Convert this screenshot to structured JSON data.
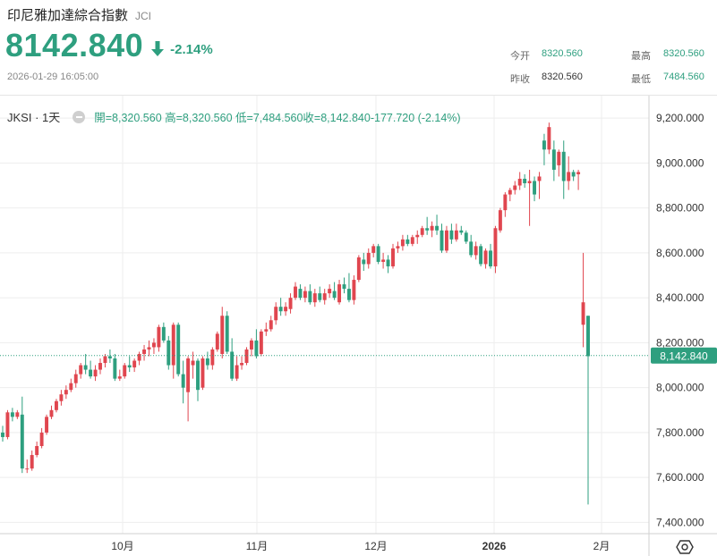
{
  "header": {
    "name": "印尼雅加達綜合指數",
    "code": "JCI",
    "price": "8142.840",
    "change_pct": "-2.14%",
    "timestamp": "2026-01-29 16:05:00"
  },
  "stats": {
    "open_label": "今开",
    "open_value": "8320.560",
    "high_label": "最高",
    "high_value": "8320.560",
    "prev_close_label": "昨收",
    "prev_close_value": "8320.560",
    "low_label": "最低",
    "low_value": "7484.560"
  },
  "legend": {
    "symbol": "JKSI · 1天",
    "ohlc_text": "開=8,320.560 高=8,320.560 低=7,484.560收=8,142.840-177.720 (-2.14%)"
  },
  "colors": {
    "up": "#e0464f",
    "down": "#2e9f7f",
    "grid": "#eeeeee",
    "price_tag_bg": "#2e9f7f"
  },
  "icons": {
    "change": "arrow-down-icon",
    "settings": "settings-icon",
    "legend_toggle": "minus-icon"
  },
  "chart_data": {
    "type": "candlestick",
    "y_axis_ticks": [
      "7,400.000",
      "7,600.000",
      "7,800.000",
      "8,000.000",
      "8,200.000",
      "8,400.000",
      "8,600.000",
      "8,800.000",
      "9,000.000",
      "9,200.000"
    ],
    "ylim": [
      7350,
      9300
    ],
    "x_axis_ticks": [
      "10月",
      "11月",
      "12月",
      "2026",
      "2月"
    ],
    "last_price_label": "8,142.840",
    "last_price": 8142.84,
    "candles": [
      [
        7800,
        7830,
        7760,
        7780
      ],
      [
        7780,
        7900,
        7770,
        7890
      ],
      [
        7890,
        7910,
        7850,
        7870
      ],
      [
        7870,
        7900,
        7860,
        7890
      ],
      [
        7880,
        7960,
        7620,
        7640
      ],
      [
        7640,
        7680,
        7620,
        7640
      ],
      [
        7640,
        7720,
        7630,
        7700
      ],
      [
        7700,
        7760,
        7690,
        7740
      ],
      [
        7740,
        7820,
        7730,
        7800
      ],
      [
        7800,
        7880,
        7790,
        7870
      ],
      [
        7870,
        7920,
        7860,
        7900
      ],
      [
        7900,
        7950,
        7890,
        7940
      ],
      [
        7940,
        7990,
        7920,
        7970
      ],
      [
        7970,
        8010,
        7950,
        7990
      ],
      [
        7990,
        8040,
        7980,
        8020
      ],
      [
        8020,
        8080,
        8000,
        8060
      ],
      [
        8060,
        8110,
        8040,
        8100
      ],
      [
        8100,
        8150,
        8060,
        8080
      ],
      [
        8080,
        8120,
        8040,
        8050
      ],
      [
        8050,
        8100,
        8030,
        8080
      ],
      [
        8080,
        8130,
        8060,
        8110
      ],
      [
        8110,
        8150,
        8090,
        8140
      ],
      [
        8140,
        8170,
        8110,
        8130
      ],
      [
        8130,
        8150,
        8030,
        8040
      ],
      [
        8040,
        8080,
        8030,
        8050
      ],
      [
        8050,
        8110,
        8040,
        8100
      ],
      [
        8100,
        8140,
        8070,
        8090
      ],
      [
        8090,
        8130,
        8070,
        8120
      ],
      [
        8120,
        8160,
        8100,
        8150
      ],
      [
        8150,
        8190,
        8120,
        8170
      ],
      [
        8170,
        8210,
        8140,
        8180
      ],
      [
        8180,
        8220,
        8150,
        8200
      ],
      [
        8180,
        8280,
        8160,
        8270
      ],
      [
        8270,
        8290,
        8200,
        8210
      ],
      [
        8210,
        8230,
        8080,
        8100
      ],
      [
        8100,
        8290,
        8040,
        8280
      ],
      [
        8280,
        8290,
        8050,
        8060
      ],
      [
        8060,
        8120,
        7930,
        8000
      ],
      [
        7980,
        8140,
        7850,
        8130
      ],
      [
        8100,
        8160,
        8040,
        8120
      ],
      [
        8120,
        8130,
        7940,
        7990
      ],
      [
        8000,
        8140,
        7990,
        8130
      ],
      [
        8130,
        8160,
        8080,
        8100
      ],
      [
        8100,
        8180,
        8080,
        8170
      ],
      [
        8170,
        8250,
        8160,
        8240
      ],
      [
        8150,
        8360,
        8130,
        8320
      ],
      [
        8320,
        8340,
        8150,
        8160
      ],
      [
        8160,
        8220,
        8030,
        8040
      ],
      [
        8040,
        8140,
        8030,
        8100
      ],
      [
        8100,
        8140,
        8080,
        8110
      ],
      [
        8110,
        8180,
        8100,
        8170
      ],
      [
        8170,
        8220,
        8140,
        8210
      ],
      [
        8210,
        8260,
        8130,
        8140
      ],
      [
        8150,
        8260,
        8140,
        8250
      ],
      [
        8250,
        8290,
        8230,
        8260
      ],
      [
        8260,
        8320,
        8250,
        8300
      ],
      [
        8300,
        8380,
        8280,
        8360
      ],
      [
        8360,
        8400,
        8320,
        8340
      ],
      [
        8340,
        8380,
        8320,
        8360
      ],
      [
        8350,
        8420,
        8330,
        8400
      ],
      [
        8400,
        8470,
        8390,
        8450
      ],
      [
        8440,
        8460,
        8390,
        8400
      ],
      [
        8400,
        8450,
        8380,
        8430
      ],
      [
        8430,
        8460,
        8370,
        8380
      ],
      [
        8380,
        8440,
        8360,
        8420
      ],
      [
        8420,
        8450,
        8380,
        8390
      ],
      [
        8390,
        8440,
        8370,
        8420
      ],
      [
        8420,
        8460,
        8400,
        8440
      ],
      [
        8430,
        8470,
        8390,
        8400
      ],
      [
        8380,
        8480,
        8370,
        8460
      ],
      [
        8460,
        8490,
        8420,
        8440
      ],
      [
        8440,
        8510,
        8380,
        8390
      ],
      [
        8390,
        8500,
        8370,
        8480
      ],
      [
        8480,
        8590,
        8470,
        8580
      ],
      [
        8570,
        8600,
        8520,
        8550
      ],
      [
        8550,
        8620,
        8530,
        8600
      ],
      [
        8600,
        8640,
        8580,
        8630
      ],
      [
        8630,
        8640,
        8550,
        8560
      ],
      [
        8560,
        8600,
        8530,
        8570
      ],
      [
        8570,
        8590,
        8510,
        8540
      ],
      [
        8540,
        8640,
        8530,
        8620
      ],
      [
        8620,
        8650,
        8600,
        8630
      ],
      [
        8630,
        8680,
        8610,
        8660
      ],
      [
        8660,
        8680,
        8630,
        8640
      ],
      [
        8640,
        8680,
        8630,
        8670
      ],
      [
        8670,
        8700,
        8640,
        8680
      ],
      [
        8680,
        8720,
        8670,
        8710
      ],
      [
        8710,
        8760,
        8680,
        8700
      ],
      [
        8700,
        8740,
        8670,
        8720
      ],
      [
        8720,
        8770,
        8680,
        8700
      ],
      [
        8700,
        8730,
        8600,
        8610
      ],
      [
        8610,
        8720,
        8600,
        8700
      ],
      [
        8700,
        8730,
        8640,
        8660
      ],
      [
        8660,
        8730,
        8650,
        8700
      ],
      [
        8700,
        8720,
        8680,
        8690
      ],
      [
        8690,
        8700,
        8640,
        8650
      ],
      [
        8650,
        8680,
        8580,
        8590
      ],
      [
        8590,
        8650,
        8570,
        8630
      ],
      [
        8630,
        8640,
        8540,
        8550
      ],
      [
        8550,
        8620,
        8530,
        8610
      ],
      [
        8610,
        8640,
        8530,
        8540
      ],
      [
        8540,
        8720,
        8510,
        8710
      ],
      [
        8700,
        8800,
        8690,
        8790
      ],
      [
        8790,
        8870,
        8760,
        8860
      ],
      [
        8860,
        8890,
        8830,
        8880
      ],
      [
        8880,
        8920,
        8860,
        8900
      ],
      [
        8900,
        8960,
        8880,
        8930
      ],
      [
        8930,
        8950,
        8890,
        8910
      ],
      [
        8910,
        8970,
        8720,
        8920
      ],
      [
        8920,
        8940,
        8830,
        8860
      ],
      [
        8920,
        8960,
        8840,
        8940
      ],
      [
        9100,
        9130,
        8990,
        9060
      ],
      [
        9060,
        9180,
        9040,
        9160
      ],
      [
        9060,
        9100,
        8920,
        8970
      ],
      [
        8990,
        9060,
        8940,
        9050
      ],
      [
        9050,
        9100,
        8840,
        8920
      ],
      [
        8920,
        9030,
        8880,
        8960
      ],
      [
        8960,
        8970,
        8920,
        8940
      ],
      [
        8950,
        8970,
        8880,
        8960
      ],
      [
        8280,
        8600,
        8180,
        8380
      ],
      [
        8320,
        8320,
        7480,
        8140
      ]
    ]
  }
}
